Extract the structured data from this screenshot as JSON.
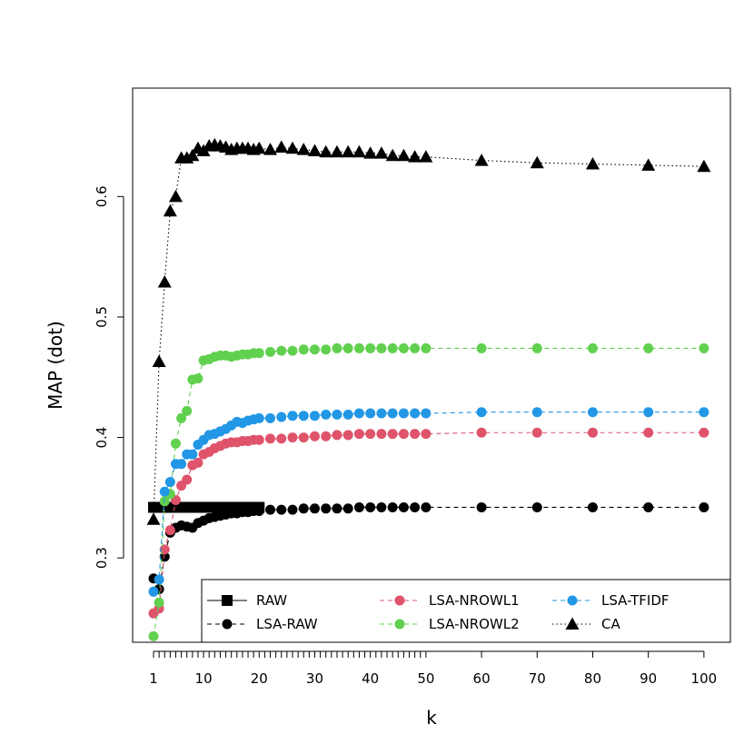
{
  "chart_data": {
    "type": "line",
    "title": "",
    "xlabel": "k",
    "ylabel": "MAP (dot)",
    "xlim": [
      1,
      100
    ],
    "ylim": [
      0.23,
      0.69
    ],
    "x_tick_labels": [
      1,
      10,
      20,
      30,
      40,
      50,
      60,
      70,
      80,
      90,
      100
    ],
    "y_tick_labels": [
      0.3,
      0.4,
      0.5,
      0.6
    ],
    "grid": false,
    "legend_position": "bottom-right",
    "series": [
      {
        "name": "RAW",
        "color": "#000000",
        "marker": "square",
        "line": "solid",
        "x": [
          1,
          2,
          3,
          4,
          5,
          6,
          7,
          8,
          9,
          10,
          11,
          12,
          13,
          14,
          15,
          16,
          17,
          18,
          19,
          20
        ],
        "y": [
          0.342,
          0.342,
          0.342,
          0.342,
          0.342,
          0.342,
          0.342,
          0.342,
          0.342,
          0.342,
          0.342,
          0.342,
          0.342,
          0.342,
          0.342,
          0.342,
          0.342,
          0.342,
          0.342,
          0.342
        ]
      },
      {
        "name": "LSA-RAW",
        "color": "#000000",
        "marker": "circle",
        "line": "dashed",
        "x": [
          1,
          2,
          3,
          4,
          5,
          6,
          7,
          8,
          9,
          10,
          11,
          12,
          13,
          14,
          15,
          16,
          17,
          18,
          19,
          20,
          22,
          24,
          26,
          28,
          30,
          32,
          34,
          36,
          38,
          40,
          42,
          44,
          46,
          48,
          50,
          60,
          70,
          80,
          90,
          100
        ],
        "y": [
          0.283,
          0.274,
          0.301,
          0.321,
          0.325,
          0.327,
          0.326,
          0.325,
          0.329,
          0.331,
          0.333,
          0.334,
          0.335,
          0.336,
          0.337,
          0.337,
          0.338,
          0.338,
          0.339,
          0.339,
          0.34,
          0.34,
          0.34,
          0.341,
          0.341,
          0.341,
          0.341,
          0.341,
          0.342,
          0.342,
          0.342,
          0.342,
          0.342,
          0.342,
          0.342,
          0.342,
          0.342,
          0.342,
          0.342,
          0.342
        ]
      },
      {
        "name": "LSA-NROWL1",
        "color": "#DF536B",
        "marker": "circle",
        "line": "dashed",
        "x": [
          1,
          2,
          3,
          4,
          5,
          6,
          7,
          8,
          9,
          10,
          11,
          12,
          13,
          14,
          15,
          16,
          17,
          18,
          19,
          20,
          22,
          24,
          26,
          28,
          30,
          32,
          34,
          36,
          38,
          40,
          42,
          44,
          46,
          48,
          50,
          60,
          70,
          80,
          90,
          100
        ],
        "y": [
          0.254,
          0.258,
          0.307,
          0.323,
          0.348,
          0.36,
          0.365,
          0.377,
          0.379,
          0.386,
          0.388,
          0.391,
          0.393,
          0.395,
          0.396,
          0.396,
          0.397,
          0.397,
          0.398,
          0.398,
          0.399,
          0.399,
          0.4,
          0.4,
          0.401,
          0.401,
          0.402,
          0.402,
          0.403,
          0.403,
          0.403,
          0.403,
          0.403,
          0.403,
          0.403,
          0.404,
          0.404,
          0.404,
          0.404,
          0.404
        ]
      },
      {
        "name": "LSA-NROWL2",
        "color": "#61D04F",
        "marker": "circle",
        "line": "dashed",
        "x": [
          1,
          2,
          3,
          4,
          5,
          6,
          7,
          8,
          9,
          10,
          11,
          12,
          13,
          14,
          15,
          16,
          17,
          18,
          19,
          20,
          22,
          24,
          26,
          28,
          30,
          32,
          34,
          36,
          38,
          40,
          42,
          44,
          46,
          48,
          50,
          60,
          70,
          80,
          90,
          100
        ],
        "y": [
          0.235,
          0.263,
          0.347,
          0.353,
          0.395,
          0.416,
          0.422,
          0.448,
          0.449,
          0.464,
          0.465,
          0.467,
          0.468,
          0.468,
          0.467,
          0.468,
          0.469,
          0.469,
          0.47,
          0.47,
          0.471,
          0.472,
          0.472,
          0.473,
          0.473,
          0.473,
          0.474,
          0.474,
          0.474,
          0.474,
          0.474,
          0.474,
          0.474,
          0.474,
          0.474,
          0.474,
          0.474,
          0.474,
          0.474,
          0.474
        ]
      },
      {
        "name": "LSA-TFIDF",
        "color": "#2297E6",
        "marker": "circle",
        "line": "dashed",
        "x": [
          1,
          2,
          3,
          4,
          5,
          6,
          7,
          8,
          9,
          10,
          11,
          12,
          13,
          14,
          15,
          16,
          17,
          18,
          19,
          20,
          22,
          24,
          26,
          28,
          30,
          32,
          34,
          36,
          38,
          40,
          42,
          44,
          46,
          48,
          50,
          60,
          70,
          80,
          90,
          100
        ],
        "y": [
          0.272,
          0.282,
          0.355,
          0.363,
          0.378,
          0.378,
          0.386,
          0.386,
          0.394,
          0.398,
          0.402,
          0.403,
          0.405,
          0.407,
          0.41,
          0.413,
          0.412,
          0.414,
          0.415,
          0.416,
          0.416,
          0.417,
          0.418,
          0.418,
          0.418,
          0.419,
          0.419,
          0.419,
          0.42,
          0.42,
          0.42,
          0.42,
          0.42,
          0.42,
          0.42,
          0.421,
          0.421,
          0.421,
          0.421,
          0.421
        ]
      },
      {
        "name": "CA",
        "color": "#000000",
        "marker": "triangle",
        "line": "dotted",
        "x": [
          1,
          2,
          3,
          4,
          5,
          6,
          7,
          8,
          9,
          10,
          11,
          12,
          13,
          14,
          15,
          16,
          17,
          18,
          19,
          20,
          22,
          24,
          26,
          28,
          30,
          32,
          34,
          36,
          38,
          40,
          42,
          44,
          46,
          48,
          50,
          60,
          70,
          80,
          90,
          100
        ],
        "y": [
          0.332,
          0.463,
          0.529,
          0.588,
          0.6,
          0.632,
          0.632,
          0.634,
          0.64,
          0.638,
          0.642,
          0.643,
          0.642,
          0.641,
          0.639,
          0.64,
          0.64,
          0.64,
          0.639,
          0.64,
          0.639,
          0.641,
          0.64,
          0.639,
          0.638,
          0.637,
          0.637,
          0.637,
          0.637,
          0.636,
          0.636,
          0.634,
          0.634,
          0.633,
          0.633,
          0.63,
          0.628,
          0.627,
          0.626,
          0.625
        ]
      }
    ]
  }
}
